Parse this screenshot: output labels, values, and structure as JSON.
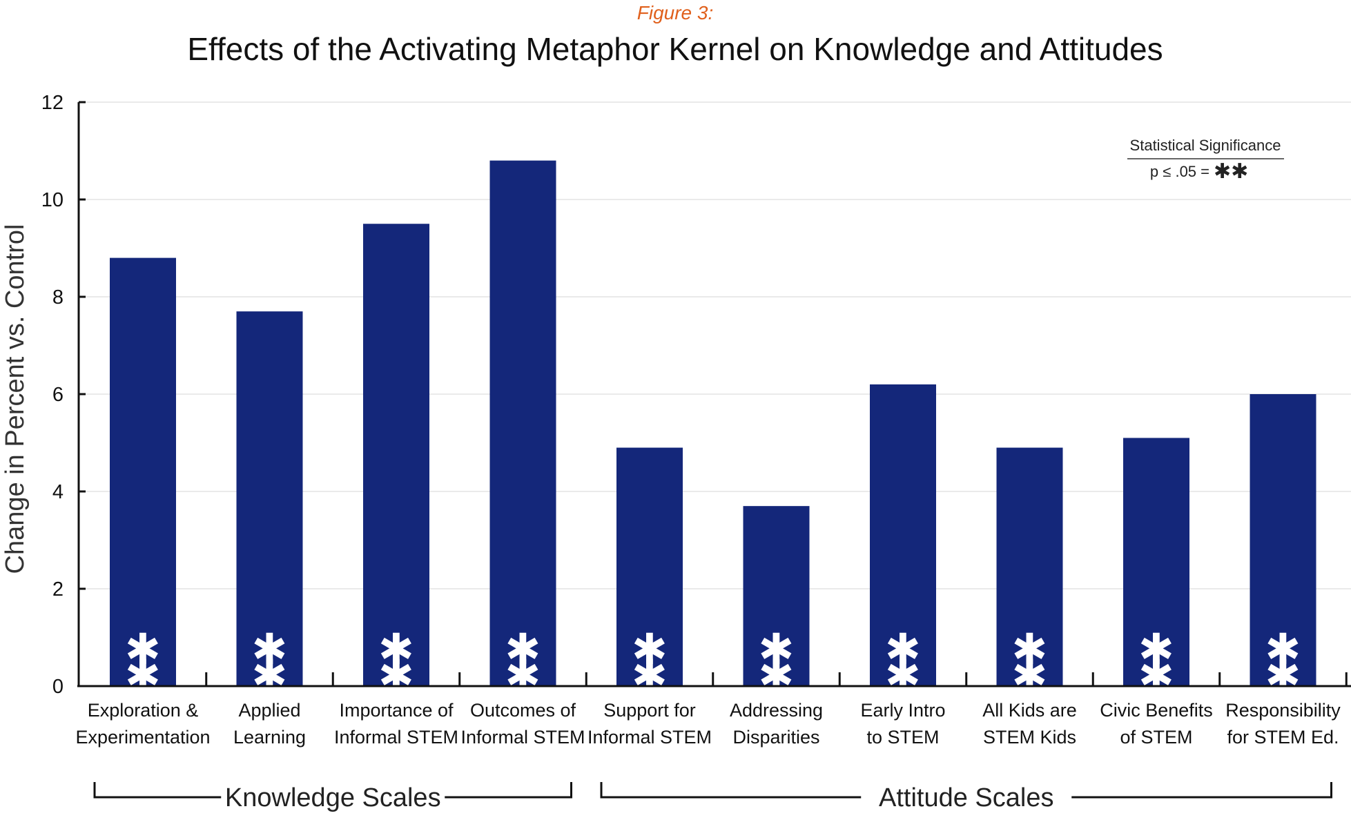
{
  "figure_label": "Figure 3:",
  "legend": {
    "title": "Statistical Significance",
    "text": "p ≤ .05 =",
    "symbol": "✱✱"
  },
  "chart_data": {
    "type": "bar",
    "title": "Effects of the Activating Metaphor Kernel on Knowledge and Attitudes",
    "xlabel": "",
    "ylabel": "Change in Percent vs. Control",
    "ylim": [
      0,
      12
    ],
    "yticks": [
      "0",
      "2",
      "4",
      "6",
      "8",
      "10",
      "12"
    ],
    "grid": true,
    "legend_position": "top-right",
    "bar_color": "#14277a",
    "categories": [
      [
        "Exploration &",
        "Experimentation"
      ],
      [
        "Applied",
        "Learning"
      ],
      [
        "Importance of",
        "Informal STEM"
      ],
      [
        "Outcomes of",
        "Informal STEM"
      ],
      [
        "Support for",
        "Informal STEM"
      ],
      [
        "Addressing",
        "Disparities"
      ],
      [
        "Early Intro",
        "to STEM"
      ],
      [
        "All Kids are",
        "STEM Kids"
      ],
      [
        "Civic Benefits",
        "of STEM"
      ],
      [
        "Responsibility",
        "for STEM Ed."
      ]
    ],
    "values": [
      8.8,
      7.7,
      9.5,
      10.8,
      4.9,
      3.7,
      6.2,
      4.9,
      5.1,
      6.0
    ],
    "significance": [
      "✱✱",
      "✱✱",
      "✱✱",
      "✱✱",
      "✱✱",
      "✱✱",
      "✱✱",
      "✱✱",
      "✱✱",
      "✱✱"
    ],
    "groups": [
      {
        "label": "Knowledge Scales",
        "start": 0,
        "end": 3
      },
      {
        "label": "Attitude Scales",
        "start": 4,
        "end": 9
      }
    ]
  }
}
